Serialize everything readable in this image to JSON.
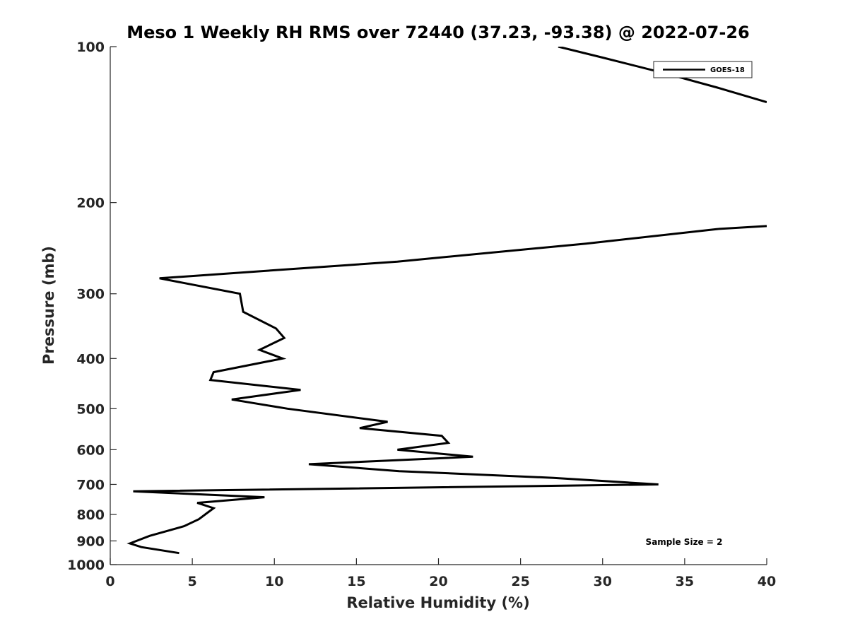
{
  "chart_data": {
    "type": "line",
    "title": "Meso 1 Weekly RH RMS over 72440 (37.23, -93.38) @ 2022-07-26",
    "xlabel": "Relative Humidity (%)",
    "ylabel": "Pressure (mb)",
    "xlim": [
      0,
      40
    ],
    "ylim": [
      100,
      1000
    ],
    "y_scale": "log",
    "y_reversed": true,
    "x_ticks": [
      0,
      5,
      10,
      15,
      20,
      25,
      30,
      35,
      40
    ],
    "y_ticks": [
      100,
      200,
      300,
      400,
      500,
      600,
      700,
      800,
      900,
      1000
    ],
    "grid": false,
    "legend_position": "top-right",
    "annotation": "Sample Size = 2",
    "series": [
      {
        "name": "GOES-18",
        "color": "#000000",
        "points": [
          [
            4.2,
            950
          ],
          [
            1.9,
            925
          ],
          [
            1.2,
            910
          ],
          [
            2.4,
            880
          ],
          [
            4.5,
            843
          ],
          [
            5.4,
            817
          ],
          [
            5.9,
            795
          ],
          [
            6.3,
            778
          ],
          [
            5.3,
            760
          ],
          [
            9.4,
            741
          ],
          [
            1.4,
            722
          ],
          [
            33.4,
            700
          ],
          [
            27,
            680
          ],
          [
            17.6,
            660
          ],
          [
            12.1,
            640
          ],
          [
            22.1,
            619
          ],
          [
            17.5,
            600
          ],
          [
            20.6,
            582
          ],
          [
            20.2,
            564
          ],
          [
            15.2,
            545
          ],
          [
            16.9,
            530
          ],
          [
            10.8,
            500
          ],
          [
            7.4,
            480
          ],
          [
            11.6,
            460
          ],
          [
            6.1,
            440
          ],
          [
            6.3,
            425
          ],
          [
            10.5,
            400
          ],
          [
            9.1,
            385
          ],
          [
            10.6,
            365
          ],
          [
            10.1,
            350
          ],
          [
            8.1,
            325
          ],
          [
            7.9,
            300
          ],
          [
            3.0,
            280
          ],
          [
            17.5,
            260
          ],
          [
            29.0,
            240
          ],
          [
            37.0,
            225
          ],
          [
            40.0,
            222
          ]
        ],
        "upper_points": [
          [
            27.3,
            100
          ],
          [
            30.0,
            105
          ],
          [
            34.0,
            113
          ],
          [
            37.0,
            120
          ],
          [
            40.0,
            128
          ]
        ]
      }
    ]
  }
}
